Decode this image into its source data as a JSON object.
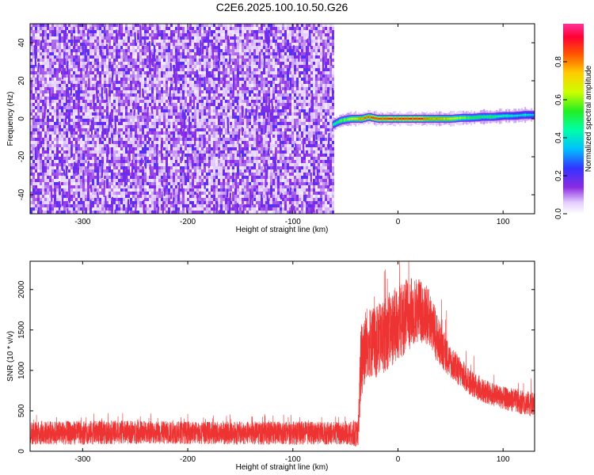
{
  "title": "C2E6.2025.100.10.50.G26",
  "chart_data": [
    {
      "type": "heatmap",
      "xlabel": "Height of straight line (km)",
      "ylabel": "Frequency (Hz)",
      "xlim": [
        -350,
        130
      ],
      "ylim": [
        -50,
        50
      ],
      "xticks": [
        -300,
        -200,
        -100,
        0,
        100
      ],
      "yticks": [
        -40,
        -20,
        0,
        20,
        40
      ],
      "colorbar": {
        "label": "Normalized spectral amplitude",
        "range": [
          0,
          1
        ],
        "ticks": [
          "0.0",
          "0.2",
          "0.4",
          "0.6",
          "0.8"
        ]
      },
      "regions": [
        {
          "x_range": [
            -350,
            -62
          ],
          "freq_range": [
            -50,
            50
          ],
          "amplitude": "0.0-0.2 (noise)"
        },
        {
          "x_range": [
            -62,
            130
          ],
          "freq_center": 0,
          "freq_width": 4,
          "amplitude": "0.3-0.95"
        }
      ],
      "ridge": {
        "x": [
          -62,
          -55,
          -45,
          -35,
          -28,
          -20,
          -10,
          0,
          10,
          20,
          30,
          40,
          50,
          60,
          70,
          80,
          90,
          100,
          110,
          120,
          130
        ],
        "freq": [
          -3,
          -1,
          0,
          0,
          1,
          0,
          0,
          0,
          0,
          0,
          0,
          0,
          0,
          0.5,
          0.5,
          1,
          1,
          1.5,
          1.5,
          2,
          2
        ],
        "peak_amplitude": [
          0.45,
          0.6,
          0.75,
          0.85,
          0.9,
          0.92,
          0.95,
          0.97,
          0.97,
          0.95,
          0.9,
          0.85,
          0.75,
          0.65,
          0.6,
          0.55,
          0.55,
          0.5,
          0.45,
          0.45,
          0.4
        ]
      }
    },
    {
      "type": "line",
      "xlabel": "Height of straight line (km)",
      "ylabel": "SNR (10 * v/v)",
      "xlim": [
        -350,
        130
      ],
      "ylim": [
        0,
        2350
      ],
      "xticks": [
        -300,
        -200,
        -100,
        0,
        100
      ],
      "yticks": [
        0,
        500,
        1000,
        1500,
        2000
      ],
      "color": "#ee3333",
      "envelope": {
        "x": [
          -350,
          -300,
          -250,
          -200,
          -150,
          -100,
          -50,
          -38,
          -35,
          -30,
          -20,
          -10,
          0,
          10,
          20,
          30,
          35,
          40,
          50,
          60,
          70,
          80,
          90,
          100,
          110,
          120,
          130
        ],
        "low": [
          80,
          80,
          90,
          90,
          80,
          80,
          80,
          50,
          600,
          900,
          900,
          1000,
          1100,
          1250,
          1350,
          1300,
          1150,
          1050,
          900,
          780,
          680,
          600,
          560,
          520,
          480,
          450,
          420
        ],
        "high": [
          370,
          380,
          380,
          370,
          370,
          370,
          360,
          380,
          1700,
          1800,
          1800,
          1950,
          2050,
          2150,
          2150,
          2000,
          1800,
          1600,
          1300,
          1150,
          1000,
          900,
          850,
          800,
          780,
          760,
          720
        ]
      }
    }
  ]
}
